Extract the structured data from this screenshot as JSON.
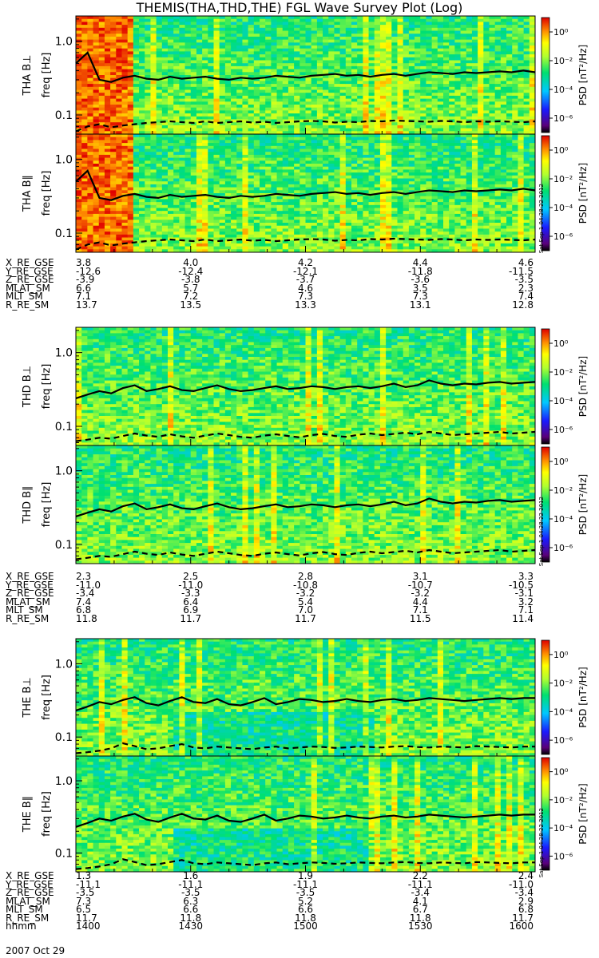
{
  "title": "THEMIS(THA,THD,THE) FGL Wave Survey Plot (Log)",
  "chart_data": {
    "type": "heatmap",
    "title": "THEMIS(THA,THD,THE) FGL Wave Survey Plot (Log)",
    "xlabel": "hhmm",
    "ylabel": "freq [Hz]",
    "yscale": "log",
    "ylim": [
      0.055,
      2.2
    ],
    "yticks": [
      "1.0",
      "0.1"
    ],
    "colorbar_label": "PSD [nT²/Hz]",
    "colorbar_ticks": [
      "10⁰",
      "10⁻²",
      "10⁻⁴",
      "10⁻⁶"
    ],
    "colorbar_range_log": [
      -7,
      1
    ],
    "time_ticks": [
      "1400",
      "1430",
      "1500",
      "1530",
      "1600"
    ],
    "panels": [
      {
        "ylabel": "THA B⊥",
        "probe": "THA"
      },
      {
        "ylabel": "THA B∥",
        "probe": "THA"
      },
      {
        "ylabel": "THD B⊥",
        "probe": "THD"
      },
      {
        "ylabel": "THD B∥",
        "probe": "THD"
      },
      {
        "ylabel": "THE B⊥",
        "probe": "THE"
      },
      {
        "ylabel": "THE B∥",
        "probe": "THE"
      }
    ],
    "series": [
      {
        "probe": "THA",
        "style": "solid",
        "values": [
          0.5,
          0.7,
          0.3,
          0.28,
          0.32,
          0.34,
          0.31,
          0.3,
          0.33,
          0.31,
          0.32,
          0.33,
          0.31,
          0.3,
          0.32,
          0.31,
          0.32,
          0.34,
          0.33,
          0.32,
          0.34,
          0.35,
          0.36,
          0.34,
          0.35,
          0.33,
          0.35,
          0.36,
          0.34,
          0.36,
          0.38,
          0.37,
          0.36,
          0.38,
          0.37,
          0.38,
          0.39,
          0.38,
          0.4,
          0.38
        ]
      },
      {
        "probe": "THA",
        "style": "dashed",
        "values": [
          0.06,
          0.07,
          0.075,
          0.068,
          0.072,
          0.075,
          0.078,
          0.08,
          0.082,
          0.08,
          0.078,
          0.082,
          0.078,
          0.08,
          0.082,
          0.079,
          0.081,
          0.078,
          0.08,
          0.082,
          0.083,
          0.082,
          0.079,
          0.081,
          0.08,
          0.083,
          0.082,
          0.084,
          0.083,
          0.082,
          0.081,
          0.083,
          0.082,
          0.08,
          0.082,
          0.081,
          0.082,
          0.081,
          0.08,
          0.082
        ]
      },
      {
        "probe": "THD",
        "style": "solid",
        "values": [
          0.24,
          0.27,
          0.3,
          0.28,
          0.33,
          0.36,
          0.3,
          0.32,
          0.35,
          0.31,
          0.3,
          0.33,
          0.36,
          0.32,
          0.3,
          0.31,
          0.33,
          0.35,
          0.32,
          0.33,
          0.35,
          0.34,
          0.32,
          0.34,
          0.35,
          0.33,
          0.35,
          0.38,
          0.34,
          0.36,
          0.42,
          0.38,
          0.36,
          0.38,
          0.37,
          0.39,
          0.4,
          0.38,
          0.39,
          0.4
        ]
      },
      {
        "probe": "THD",
        "style": "dashed",
        "values": [
          0.063,
          0.066,
          0.07,
          0.068,
          0.074,
          0.08,
          0.075,
          0.072,
          0.078,
          0.073,
          0.07,
          0.075,
          0.08,
          0.076,
          0.072,
          0.07,
          0.075,
          0.078,
          0.074,
          0.071,
          0.076,
          0.079,
          0.074,
          0.072,
          0.077,
          0.08,
          0.076,
          0.079,
          0.082,
          0.078,
          0.084,
          0.08,
          0.076,
          0.078,
          0.08,
          0.082,
          0.084,
          0.08,
          0.082,
          0.084
        ]
      },
      {
        "probe": "THE",
        "style": "solid",
        "values": [
          0.23,
          0.26,
          0.3,
          0.28,
          0.32,
          0.35,
          0.29,
          0.27,
          0.31,
          0.35,
          0.3,
          0.29,
          0.33,
          0.28,
          0.27,
          0.3,
          0.34,
          0.28,
          0.3,
          0.33,
          0.32,
          0.3,
          0.31,
          0.33,
          0.31,
          0.3,
          0.32,
          0.33,
          0.31,
          0.32,
          0.34,
          0.33,
          0.32,
          0.31,
          0.32,
          0.33,
          0.34,
          0.33,
          0.34,
          0.34
        ]
      },
      {
        "probe": "THE",
        "style": "dashed",
        "values": [
          0.06,
          0.062,
          0.065,
          0.07,
          0.082,
          0.075,
          0.068,
          0.07,
          0.075,
          0.08,
          0.072,
          0.07,
          0.074,
          0.072,
          0.07,
          0.068,
          0.072,
          0.074,
          0.07,
          0.072,
          0.074,
          0.073,
          0.071,
          0.072,
          0.074,
          0.073,
          0.072,
          0.074,
          0.075,
          0.073,
          0.072,
          0.074,
          0.073,
          0.072,
          0.075,
          0.074,
          0.073,
          0.072,
          0.074,
          0.074
        ]
      }
    ]
  },
  "ephemeris": [
    {
      "rows": [
        {
          "label": "X_RE_GSE",
          "values": [
            "3.8",
            "4.0",
            "4.2",
            "4.4",
            "4.6"
          ]
        },
        {
          "label": "Y_RE_GSE",
          "values": [
            "-12.6",
            "-12.4",
            "-12.1",
            "-11.8",
            "-11.5"
          ]
        },
        {
          "label": "Z_RE_GSE",
          "values": [
            "-3.9",
            "-3.8",
            "-3.7",
            "-3.6",
            "-3.5"
          ]
        },
        {
          "label": "MLAT_SM",
          "values": [
            "6.6",
            "5.7",
            "4.6",
            "3.5",
            "2.3"
          ]
        },
        {
          "label": "MLT_SM",
          "values": [
            "7.1",
            "7.2",
            "7.3",
            "7.3",
            "7.4"
          ]
        },
        {
          "label": "R_RE_SM",
          "values": [
            "13.7",
            "13.5",
            "13.3",
            "13.1",
            "12.8"
          ]
        }
      ]
    },
    {
      "rows": [
        {
          "label": "X_RE_GSE",
          "values": [
            "2.3",
            "2.5",
            "2.8",
            "3.1",
            "3.3"
          ]
        },
        {
          "label": "Y_RE_GSE",
          "values": [
            "-11.0",
            "-11.0",
            "-10.8",
            "-10.7",
            "-10.5"
          ]
        },
        {
          "label": "Z_RE_GSE",
          "values": [
            "-3.4",
            "-3.3",
            "-3.2",
            "-3.2",
            "-3.1"
          ]
        },
        {
          "label": "MLAT_SM",
          "values": [
            "7.4",
            "6.4",
            "5.4",
            "4.4",
            "3.2"
          ]
        },
        {
          "label": "MLT_SM",
          "values": [
            "6.8",
            "6.9",
            "7.0",
            "7.1",
            "7.1"
          ]
        },
        {
          "label": "R_RE_SM",
          "values": [
            "11.8",
            "11.7",
            "11.7",
            "11.5",
            "11.4"
          ]
        }
      ]
    },
    {
      "rows": [
        {
          "label": "X_RE_GSE",
          "values": [
            "1.3",
            "1.6",
            "1.9",
            "2.2",
            "2.4"
          ]
        },
        {
          "label": "Y_RE_GSE",
          "values": [
            "-11.1",
            "-11.1",
            "-11.1",
            "-11.1",
            "-11.0"
          ]
        },
        {
          "label": "Z_RE_GSE",
          "values": [
            "-3.5",
            "-3.5",
            "-3.5",
            "-3.4",
            "-3.4"
          ]
        },
        {
          "label": "MLAT_SM",
          "values": [
            "7.3",
            "6.3",
            "5.2",
            "4.1",
            "2.9"
          ]
        },
        {
          "label": "MLT_SM",
          "values": [
            "6.5",
            "6.6",
            "6.6",
            "6.7",
            "6.8"
          ]
        },
        {
          "label": "R_RE_SM",
          "values": [
            "11.7",
            "11.8",
            "11.8",
            "11.8",
            "11.7"
          ]
        },
        {
          "label": "hhmm",
          "values": [
            "1400",
            "1430",
            "1500",
            "1530",
            "1600"
          ]
        }
      ]
    }
  ],
  "date": "2007 Oct 29",
  "stamp": "Sat Sep 1 04:28:22 2012",
  "colors": {
    "line": "#000000",
    "background": "#ffffff"
  }
}
